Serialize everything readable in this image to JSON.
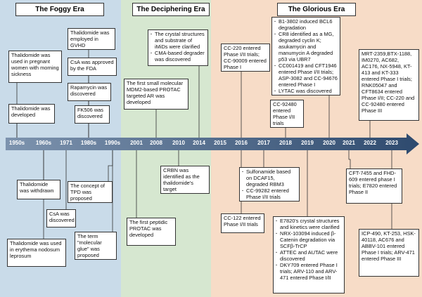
{
  "eras": [
    {
      "title": "The Foggy Era"
    },
    {
      "title": "The Deciphering Era"
    },
    {
      "title": "The Glorious Era"
    }
  ],
  "years": [
    "1950s",
    "1960s",
    "1971",
    "1980s",
    "1990s",
    "2001",
    "2008",
    "2010",
    "2014",
    "2015",
    "2016",
    "2017",
    "2018",
    "2019",
    "2020",
    "2021",
    "2022",
    "2023"
  ],
  "events": [
    {
      "text": "Thalidomide was used in pregnant women with morning sickness"
    },
    {
      "text": "Thalidomide was developed"
    },
    {
      "text": "Thalidomide was employed in GVHD"
    },
    {
      "text": "CsA was approved by the FDA"
    },
    {
      "text": "Rapamycin was discovered"
    },
    {
      "text": "FK506 was discovered"
    },
    {
      "items": [
        "The crystal structures and substrate of iMiDs were clarified",
        "CMA-based degrader was discovered"
      ]
    },
    {
      "text": "The first small molecular MDM2-based PROTAC targeted AR was developed"
    },
    {
      "text": "CC-220 entered Phase I/II trials; CC-90009 entered Phase I"
    },
    {
      "text": "CC-92480 entered Phase I/II trials"
    },
    {
      "items": [
        "B1-3802 induced BCL6 degradation",
        "CR8 identified as a MG, degraded cyclin K; asukamycin and manumycin A degraded p53 via UBR7",
        "CC001419 and CFT1946 entered Phase I/II trials; ASP-3082 and CC-94676 entered Phase I",
        "LYTAC was discovered"
      ]
    },
    {
      "text": "MRT-2359,BTX-1188, IM0270, AC682, AC176, NX-5948, KT-413 and KT-333 entered Phase I trials; RNK05047 and CFT8634 entered Phase I/II; CC-220 and CC-92480 entered Phase III"
    },
    {
      "text": "Thalidomide was withdrawn"
    },
    {
      "text": "CsA was discovered"
    },
    {
      "text": "Thalidomide was used in erythema nodosum leprosum"
    },
    {
      "text": "The concept of TPD was proposed"
    },
    {
      "text": "The term \"molecular glue\" was proposed"
    },
    {
      "text": "CRBN was identified as the thalidomide's target"
    },
    {
      "text": "The first peptidic PROTAC was developed"
    },
    {
      "items": [
        "Sulfonamide based on DCAF15, degraded RBM3",
        "CC-99282 entered Phase I/II trials"
      ]
    },
    {
      "text": "CC-122 entered Phase I/II trials"
    },
    {
      "text": "CFT-7455 and FHD-609 entered phase I trials; E7820 entered Phase II"
    },
    {
      "items": [
        "E7820's crystal structures and kinetics were clarified",
        "NRX-103094 induced β-Catenin degradation via SCFβ-TrCP",
        "ATTEC and AUTAC were discovered",
        "DKY709 entered Phase I trials; ARV-110 and ARV-471 entered Phase I/II"
      ]
    },
    {
      "text": "ICP-490, KT-253, HSK-40118, AC676 and ABBV-101 entered Phase I trials; ARV-471 entered Phase III"
    }
  ]
}
